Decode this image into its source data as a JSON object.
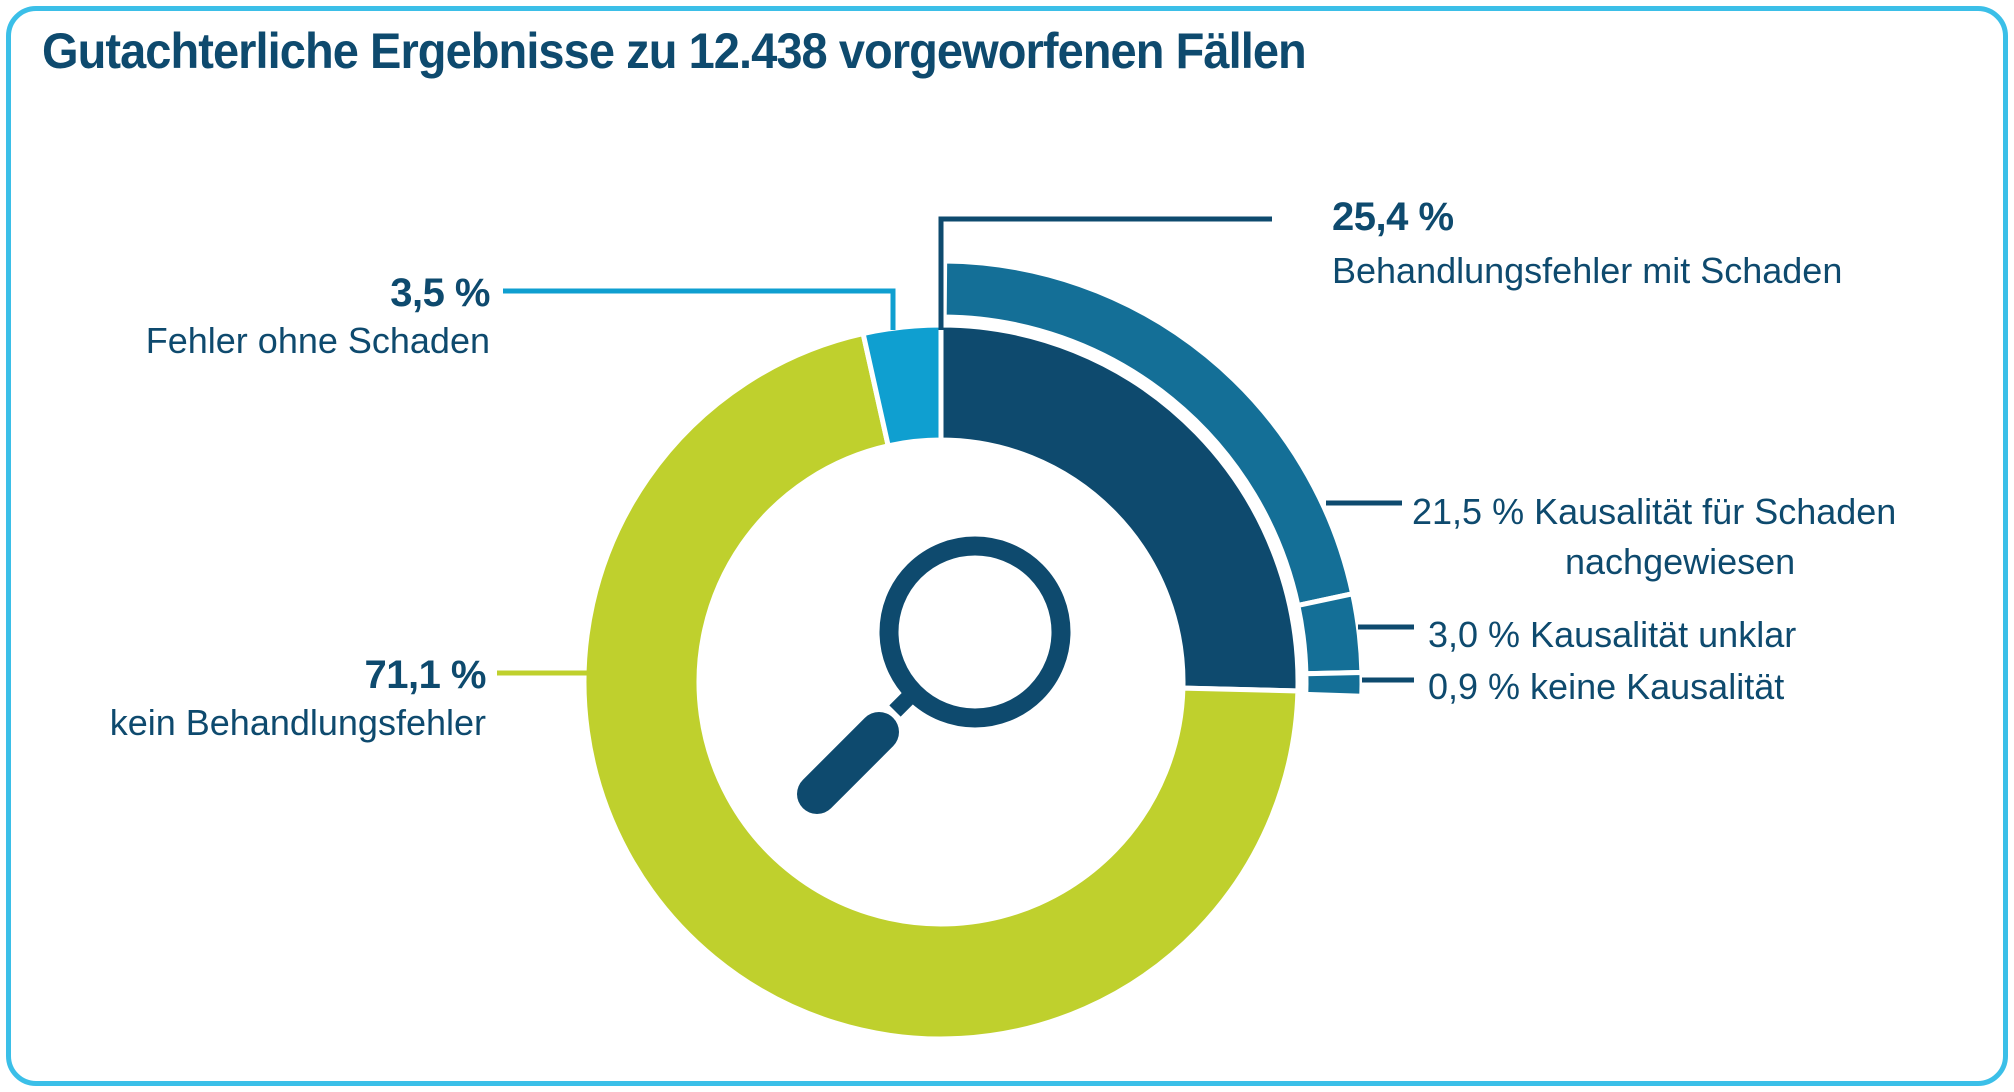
{
  "colors": {
    "navy": "#0e4a6e",
    "medium_blue": "#146f97",
    "cyan": "#0f9fd0",
    "green": "#bfd02d",
    "border": "#3bbfe8",
    "background": "#ffffff"
  },
  "chart_data": {
    "type": "donut",
    "title": "Gutachterliche Ergebnisse zu 12.438 vorgeworfenen Fällen",
    "total_cases": 12438,
    "unit": "%",
    "direction": "clockwise",
    "start_angle_deg": 0,
    "inner_ring": [
      {
        "label": "Behandlungsfehler mit Schaden",
        "value": 25.4,
        "color": "#0e4a6e"
      },
      {
        "label": "kein Behandlungsfehler",
        "value": 71.1,
        "color": "#bfd02d"
      },
      {
        "label": "Fehler ohne Schaden",
        "value": 3.5,
        "color": "#0f9fd0"
      }
    ],
    "outer_ring": [
      {
        "label": "Kausalität für Schaden nachgewiesen",
        "value": 21.5,
        "color": "#146f97"
      },
      {
        "label": "Kausalität unklar",
        "value": 3.0,
        "color": "#146f97"
      },
      {
        "label": "keine Kausalität",
        "value": 0.9,
        "color": "#146f97"
      }
    ],
    "outer_ring_is_breakdown_of": "Behandlungsfehler mit Schaden",
    "legend_position": "callout-labels",
    "center_icon": "magnifier"
  },
  "callouts": {
    "p254": {
      "pct": "25,4 %",
      "text": "Behandlungsfehler mit Schaden"
    },
    "p35": {
      "pct": "3,5 %",
      "text": "Fehler ohne Schaden"
    },
    "p711": {
      "pct": "71,1 %",
      "text": "kein Behandlungsfehler"
    },
    "p215": {
      "line1": "21,5 % Kausalität für Schaden",
      "line2": "nachgewiesen"
    },
    "p30": {
      "text": "3,0 % Kausalität unklar"
    },
    "p09": {
      "text": "0,9 % keine Kausalität"
    }
  }
}
